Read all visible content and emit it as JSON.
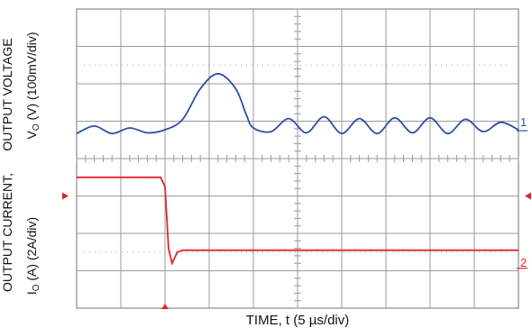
{
  "chart_data": {
    "type": "line",
    "title": "",
    "xlabel": "TIME, t (5 µs/div)",
    "ylabel_outer_top": "OUTPUT VOLTAGE",
    "ylabel_outer_bottom": "OUTPUT CURRENT,",
    "ylabel_inner_top": {
      "main": "V",
      "sub": "O",
      "rest": " (V) (100mV/div)"
    },
    "ylabel_inner_bottom": {
      "main": "I",
      "sub": "O",
      "rest": " (A) (2A/div)"
    },
    "grid": true,
    "x_divisions": 10,
    "y_divisions": 8,
    "x_unit_per_div_us": 5,
    "xlim_us": [
      0,
      50
    ],
    "series": [
      {
        "name": "",
        "channel_marker": "1",
        "color": "#2f4fa3",
        "unit": "V (offset)",
        "baseline_div": 3.23,
        "volts_per_div": 0.1,
        "x_us": [
          0,
          2,
          4,
          6,
          8,
          10,
          12,
          14,
          16,
          18,
          19.2,
          20,
          22,
          24,
          26,
          28,
          30,
          32,
          34,
          36,
          38,
          40,
          42,
          44,
          46,
          48,
          50
        ],
        "y_mV": [
          -10,
          10,
          -10,
          5,
          -8,
          0,
          28,
          110,
          150,
          110,
          40,
          5,
          -5,
          30,
          -8,
          35,
          -10,
          30,
          -10,
          32,
          -8,
          32,
          -10,
          28,
          -5,
          20,
          0
        ]
      },
      {
        "name": "",
        "channel_marker": "2",
        "color": "#e0262a",
        "unit": "A",
        "amps_per_div": 2,
        "x_us": [
          0,
          9.5,
          10.0,
          10.4,
          10.8,
          11.4,
          12,
          50
        ],
        "y_A": [
          4.0,
          4.0,
          3.5,
          0.2,
          -0.6,
          0.0,
          0.1,
          0.1
        ]
      }
    ]
  }
}
